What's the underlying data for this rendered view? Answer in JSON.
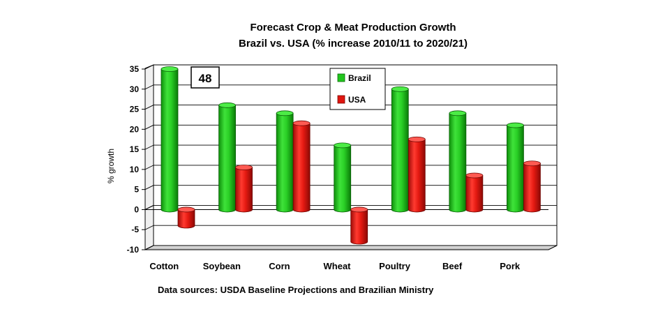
{
  "chart_data": {
    "type": "bar",
    "title": "Forecast Crop & Meat Production Growth",
    "subtitle": "Brazil vs. USA (% increase 2010/11 to 2020/21)",
    "ylabel": "% growth",
    "xlabel": "",
    "ylim": [
      -10,
      35
    ],
    "yticks": [
      35,
      30,
      25,
      20,
      15,
      10,
      5,
      0,
      -5,
      -10
    ],
    "grid": true,
    "legend": "top-center",
    "categories": [
      "Cotton",
      "Soybean",
      "Corn",
      "Wheat",
      "Poultry",
      "Beef",
      "Pork"
    ],
    "series": [
      {
        "name": "Brazil",
        "color": "#22c61e",
        "values": [
          35,
          26,
          24,
          16,
          30,
          24,
          21
        ]
      },
      {
        "name": "USA",
        "color": "#e0150f",
        "values": [
          -4,
          10.5,
          21.5,
          -8,
          17.5,
          8.5,
          11.5
        ]
      }
    ],
    "annotation": "48",
    "source": "Data sources:  USDA Baseline Projections and Brazilian Ministry"
  }
}
